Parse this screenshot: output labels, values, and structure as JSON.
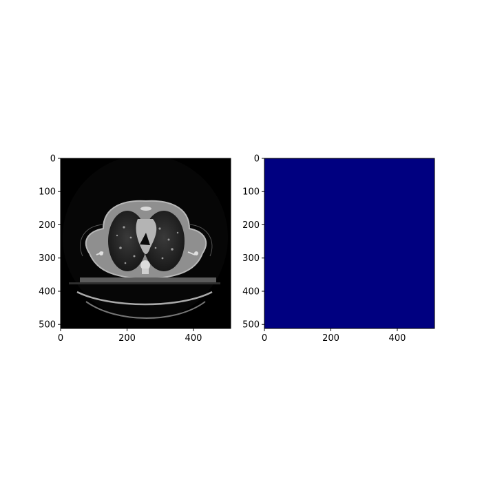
{
  "chart_data": [
    {
      "type": "heatmap",
      "content": "CT chest axial slice (grayscale)",
      "colormap": "gray",
      "background": "#000000",
      "xlim": [
        0,
        512
      ],
      "ylim": [
        512,
        0
      ],
      "xticks": [
        0,
        200,
        400
      ],
      "yticks": [
        0,
        100,
        200,
        300,
        400,
        500
      ],
      "xticklabels": [
        "0",
        "200",
        "400"
      ],
      "yticklabels": [
        "0",
        "100",
        "200",
        "300",
        "400",
        "500"
      ],
      "title": "",
      "xlabel": "",
      "ylabel": ""
    },
    {
      "type": "heatmap",
      "content": "uniform mask (all zeros)",
      "colormap": "jet",
      "fill": "#000080",
      "value": 0,
      "xlim": [
        0,
        512
      ],
      "ylim": [
        512,
        0
      ],
      "xticks": [
        0,
        200,
        400
      ],
      "yticks": [
        0,
        100,
        200,
        300,
        400,
        500
      ],
      "xticklabels": [
        "0",
        "200",
        "400"
      ],
      "yticklabels": [
        "0",
        "100",
        "200",
        "300",
        "400",
        "500"
      ],
      "title": "",
      "xlabel": "",
      "ylabel": ""
    }
  ]
}
